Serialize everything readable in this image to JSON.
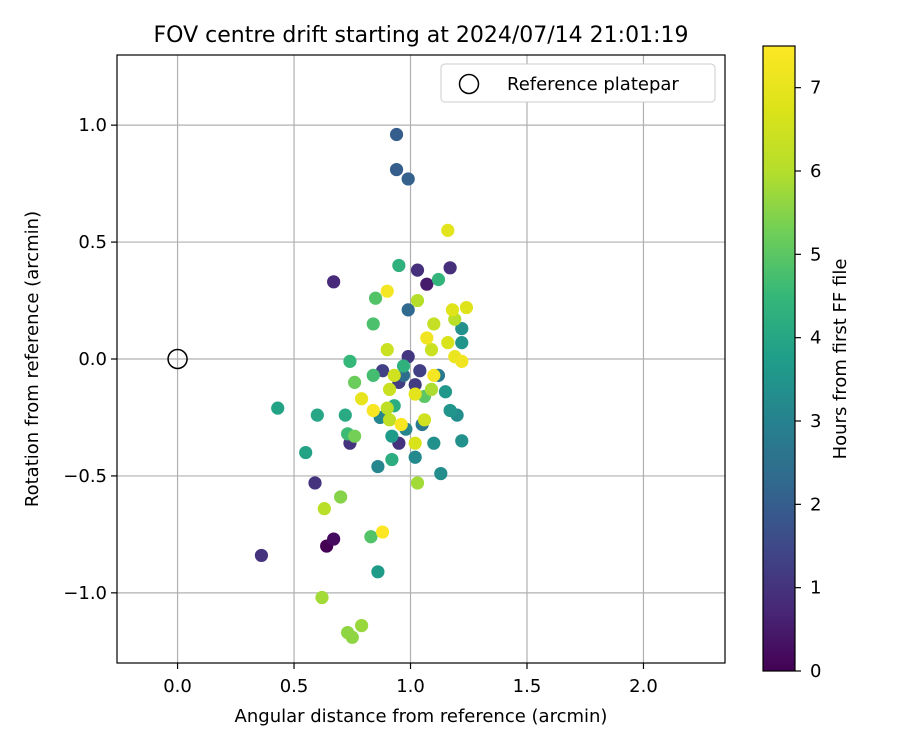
{
  "chart_data": {
    "type": "scatter",
    "title": "FOV centre drift starting at 2024/07/14 21:01:19",
    "xlabel": "Angular distance from reference (arcmin)",
    "ylabel": "Rotation from reference (arcmin)",
    "xlim": [
      -0.26,
      2.35
    ],
    "ylim": [
      -1.3,
      1.3
    ],
    "xticks": [
      0.0,
      0.5,
      1.0,
      1.5,
      2.0
    ],
    "xtick_labels": [
      "0.0",
      "0.5",
      "1.0",
      "1.5",
      "2.0"
    ],
    "yticks": [
      -1.0,
      -0.5,
      0.0,
      0.5,
      1.0
    ],
    "ytick_labels": [
      "−1.0",
      "−0.5",
      "0.0",
      "0.5",
      "1.0"
    ],
    "grid": true,
    "legend": {
      "position": "top-right",
      "entries": [
        "Reference platepar"
      ]
    },
    "reference_point": {
      "x": 0.0,
      "y": 0.0
    },
    "colorbar": {
      "label": "Hours from first FF file",
      "colormap": "viridis",
      "range": [
        0,
        7.5
      ],
      "ticks": [
        0,
        1,
        2,
        3,
        4,
        5,
        6,
        7
      ],
      "tick_labels": [
        "0",
        "1",
        "2",
        "3",
        "4",
        "5",
        "6",
        "7"
      ]
    },
    "series": [
      {
        "points": [
          {
            "x": 0.64,
            "y": -0.8,
            "h": 0.0
          },
          {
            "x": 0.67,
            "y": -0.77,
            "h": 0.2
          },
          {
            "x": 1.07,
            "y": 0.32,
            "h": 0.5
          },
          {
            "x": 0.36,
            "y": -0.84,
            "h": 1.0
          },
          {
            "x": 0.67,
            "y": 0.33,
            "h": 0.8
          },
          {
            "x": 1.17,
            "y": 0.39,
            "h": 0.9
          },
          {
            "x": 1.03,
            "y": 0.38,
            "h": 0.9
          },
          {
            "x": 0.59,
            "y": -0.53,
            "h": 1.0
          },
          {
            "x": 0.74,
            "y": -0.36,
            "h": 1.0
          },
          {
            "x": 0.95,
            "y": -0.36,
            "h": 1.0
          },
          {
            "x": 0.99,
            "y": 0.01,
            "h": 1.1
          },
          {
            "x": 0.95,
            "y": -0.1,
            "h": 1.2
          },
          {
            "x": 1.02,
            "y": -0.11,
            "h": 1.2
          },
          {
            "x": 0.88,
            "y": -0.05,
            "h": 1.3
          },
          {
            "x": 1.04,
            "y": -0.05,
            "h": 1.3
          },
          {
            "x": 0.94,
            "y": 0.96,
            "h": 2.0
          },
          {
            "x": 0.94,
            "y": 0.81,
            "h": 2.0
          },
          {
            "x": 0.99,
            "y": 0.77,
            "h": 2.1
          },
          {
            "x": 0.99,
            "y": 0.21,
            "h": 2.3
          },
          {
            "x": 0.97,
            "y": -0.07,
            "h": 2.4
          },
          {
            "x": 1.05,
            "y": -0.28,
            "h": 2.7
          },
          {
            "x": 1.12,
            "y": -0.07,
            "h": 2.7
          },
          {
            "x": 0.98,
            "y": -0.3,
            "h": 3.1
          },
          {
            "x": 0.86,
            "y": -0.46,
            "h": 3.1
          },
          {
            "x": 0.87,
            "y": -0.25,
            "h": 3.1
          },
          {
            "x": 1.02,
            "y": -0.42,
            "h": 3.2
          },
          {
            "x": 1.13,
            "y": -0.49,
            "h": 3.3
          },
          {
            "x": 1.2,
            "y": -0.24,
            "h": 3.3
          },
          {
            "x": 1.22,
            "y": -0.35,
            "h": 3.4
          },
          {
            "x": 1.1,
            "y": -0.36,
            "h": 3.4
          },
          {
            "x": 1.22,
            "y": 0.13,
            "h": 3.4
          },
          {
            "x": 1.22,
            "y": 0.07,
            "h": 3.5
          },
          {
            "x": 1.17,
            "y": -0.22,
            "h": 3.5
          },
          {
            "x": 1.15,
            "y": -0.14,
            "h": 3.6
          },
          {
            "x": 0.92,
            "y": -0.33,
            "h": 3.7
          },
          {
            "x": 0.86,
            "y": -0.91,
            "h": 3.7
          },
          {
            "x": 0.43,
            "y": -0.21,
            "h": 3.9
          },
          {
            "x": 0.55,
            "y": -0.4,
            "h": 3.9
          },
          {
            "x": 0.6,
            "y": -0.24,
            "h": 4.0
          },
          {
            "x": 0.72,
            "y": -0.24,
            "h": 4.1
          },
          {
            "x": 0.92,
            "y": -0.43,
            "h": 4.2
          },
          {
            "x": 0.93,
            "y": -0.2,
            "h": 4.2
          },
          {
            "x": 0.97,
            "y": -0.03,
            "h": 4.3
          },
          {
            "x": 0.95,
            "y": 0.4,
            "h": 4.3
          },
          {
            "x": 1.12,
            "y": 0.34,
            "h": 4.4
          },
          {
            "x": 0.74,
            "y": -0.01,
            "h": 4.5
          },
          {
            "x": 0.73,
            "y": -0.32,
            "h": 4.6
          },
          {
            "x": 0.84,
            "y": -0.07,
            "h": 4.7
          },
          {
            "x": 0.84,
            "y": 0.15,
            "h": 4.8
          },
          {
            "x": 0.85,
            "y": 0.26,
            "h": 4.9
          },
          {
            "x": 0.83,
            "y": -0.76,
            "h": 4.9
          },
          {
            "x": 1.06,
            "y": -0.16,
            "h": 5.0
          },
          {
            "x": 0.76,
            "y": -0.1,
            "h": 5.2
          },
          {
            "x": 0.76,
            "y": -0.33,
            "h": 5.3
          },
          {
            "x": 0.7,
            "y": -0.59,
            "h": 5.5
          },
          {
            "x": 0.73,
            "y": -1.17,
            "h": 5.6
          },
          {
            "x": 0.75,
            "y": -1.19,
            "h": 5.6
          },
          {
            "x": 0.79,
            "y": -1.14,
            "h": 5.7
          },
          {
            "x": 0.62,
            "y": -1.02,
            "h": 5.8
          },
          {
            "x": 1.03,
            "y": -0.53,
            "h": 5.8
          },
          {
            "x": 1.09,
            "y": -0.13,
            "h": 5.9
          },
          {
            "x": 1.03,
            "y": 0.25,
            "h": 6.0
          },
          {
            "x": 0.63,
            "y": -0.64,
            "h": 6.1
          },
          {
            "x": 1.19,
            "y": 0.17,
            "h": 6.1
          },
          {
            "x": 0.91,
            "y": -0.26,
            "h": 6.2
          },
          {
            "x": 0.9,
            "y": -0.21,
            "h": 6.2
          },
          {
            "x": 1.1,
            "y": 0.15,
            "h": 6.3
          },
          {
            "x": 1.09,
            "y": 0.04,
            "h": 6.4
          },
          {
            "x": 0.9,
            "y": 0.04,
            "h": 6.4
          },
          {
            "x": 0.91,
            "y": -0.13,
            "h": 6.4
          },
          {
            "x": 0.93,
            "y": -0.07,
            "h": 6.5
          },
          {
            "x": 1.06,
            "y": -0.26,
            "h": 6.5
          },
          {
            "x": 1.02,
            "y": -0.36,
            "h": 6.7
          },
          {
            "x": 1.16,
            "y": 0.07,
            "h": 6.7
          },
          {
            "x": 1.18,
            "y": 0.21,
            "h": 6.8
          },
          {
            "x": 1.24,
            "y": 0.22,
            "h": 6.8
          },
          {
            "x": 1.16,
            "y": 0.55,
            "h": 6.9
          },
          {
            "x": 1.02,
            "y": -0.15,
            "h": 6.9
          },
          {
            "x": 0.79,
            "y": -0.17,
            "h": 7.0
          },
          {
            "x": 1.19,
            "y": 0.01,
            "h": 7.1
          },
          {
            "x": 1.22,
            "y": -0.01,
            "h": 7.2
          },
          {
            "x": 1.07,
            "y": 0.09,
            "h": 7.2
          },
          {
            "x": 1.1,
            "y": -0.07,
            "h": 7.3
          },
          {
            "x": 0.9,
            "y": 0.29,
            "h": 7.3
          },
          {
            "x": 0.84,
            "y": -0.22,
            "h": 7.4
          },
          {
            "x": 0.96,
            "y": -0.28,
            "h": 7.4
          },
          {
            "x": 0.88,
            "y": -0.74,
            "h": 7.5
          }
        ]
      }
    ]
  }
}
